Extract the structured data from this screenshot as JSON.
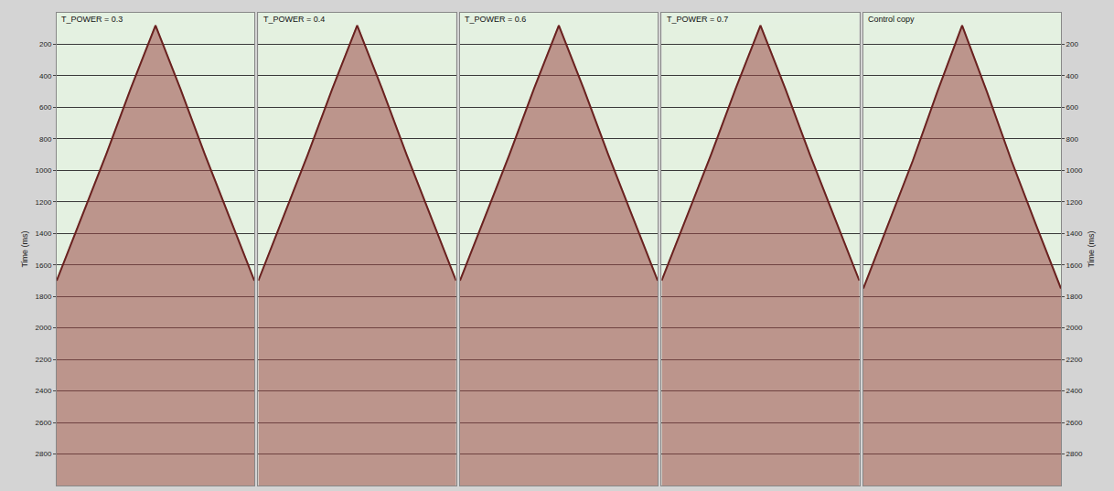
{
  "chart_data": [
    {
      "type": "area",
      "title": "T_POWER = 0.3",
      "y_label": "Time (ms)",
      "tick_labels": "y",
      "x": [
        -1,
        -0.75,
        -0.5,
        -0.25,
        0,
        0.25,
        0.5,
        0.75,
        1
      ],
      "values": [
        1700,
        1300,
        900,
        480,
        80,
        480,
        900,
        1300,
        1700
      ],
      "xlim": [
        -1,
        1
      ],
      "ylim": [
        0,
        3000
      ],
      "yticks": [
        200,
        400,
        600,
        800,
        1000,
        1200,
        1400,
        1600,
        1800,
        2000,
        2200,
        2400,
        2600,
        2800
      ],
      "color": "#9c4a48",
      "grid": true
    },
    {
      "type": "area",
      "title": "T_POWER = 0.4",
      "tick_labels": false,
      "x": [
        -1,
        -0.75,
        -0.5,
        -0.25,
        0,
        0.25,
        0.5,
        0.75,
        1
      ],
      "values": [
        1700,
        1300,
        900,
        480,
        80,
        480,
        900,
        1300,
        1700
      ],
      "xlim": [
        -1,
        1
      ],
      "ylim": [
        0,
        3000
      ],
      "yticks": [
        200,
        400,
        600,
        800,
        1000,
        1200,
        1400,
        1600,
        1800,
        2000,
        2200,
        2400,
        2600,
        2800
      ],
      "color": "#9c4a48",
      "grid": true
    },
    {
      "type": "area",
      "title": "T_POWER = 0.6",
      "tick_labels": false,
      "x": [
        -1,
        -0.75,
        -0.5,
        -0.25,
        0,
        0.25,
        0.5,
        0.75,
        1
      ],
      "values": [
        1700,
        1300,
        900,
        480,
        80,
        480,
        900,
        1300,
        1700
      ],
      "xlim": [
        -1,
        1
      ],
      "ylim": [
        0,
        3000
      ],
      "yticks": [
        200,
        400,
        600,
        800,
        1000,
        1200,
        1400,
        1600,
        1800,
        2000,
        2200,
        2400,
        2600,
        2800
      ],
      "color": "#9c4a48",
      "grid": true
    },
    {
      "type": "area",
      "title": "T_POWER = 0.7",
      "tick_labels": false,
      "x": [
        -1,
        -0.75,
        -0.5,
        -0.25,
        0,
        0.25,
        0.5,
        0.75,
        1
      ],
      "values": [
        1700,
        1300,
        900,
        480,
        80,
        480,
        900,
        1300,
        1700
      ],
      "xlim": [
        -1,
        1
      ],
      "ylim": [
        0,
        3000
      ],
      "yticks": [
        200,
        400,
        600,
        800,
        1000,
        1200,
        1400,
        1600,
        1800,
        2000,
        2200,
        2400,
        2600,
        2800
      ],
      "color": "#9c4a48",
      "grid": true
    },
    {
      "type": "area",
      "title": "Control copy",
      "y_label": "Time (ms)",
      "tick_labels": "y",
      "x": [
        -1,
        -0.75,
        -0.5,
        -0.25,
        0,
        0.25,
        0.5,
        0.75,
        1
      ],
      "values": [
        1750,
        1350,
        940,
        500,
        80,
        500,
        940,
        1350,
        1750
      ],
      "xlim": [
        -1,
        1
      ],
      "ylim": [
        0,
        3000
      ],
      "yticks": [
        200,
        400,
        600,
        800,
        1000,
        1200,
        1400,
        1600,
        1800,
        2000,
        2200,
        2400,
        2600,
        2800
      ],
      "color": "#9c4a48",
      "grid": true
    }
  ]
}
